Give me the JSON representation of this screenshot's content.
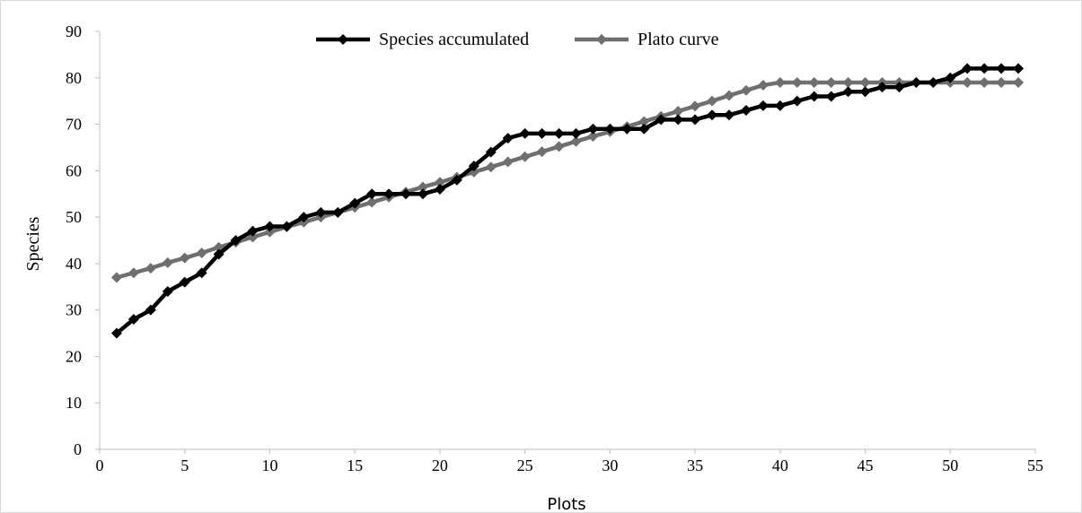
{
  "colors": {
    "series_1": "#000000",
    "series_2": "#6f6f6f",
    "axis": "#bfbfbf",
    "frame": "#d9d9d9"
  },
  "chart_data": {
    "type": "line",
    "title": "",
    "xlabel": "Plots",
    "ylabel": "Species",
    "xlim": [
      0,
      55
    ],
    "ylim": [
      0,
      90
    ],
    "x_ticks": [
      0,
      5,
      10,
      15,
      20,
      25,
      30,
      35,
      40,
      45,
      50,
      55
    ],
    "y_ticks": [
      0,
      10,
      20,
      30,
      40,
      50,
      60,
      70,
      80,
      90
    ],
    "grid": false,
    "legend_position": "top-center",
    "x": [
      1,
      2,
      3,
      4,
      5,
      6,
      7,
      8,
      9,
      10,
      11,
      12,
      13,
      14,
      15,
      16,
      17,
      18,
      19,
      20,
      21,
      22,
      23,
      24,
      25,
      26,
      27,
      28,
      29,
      30,
      31,
      32,
      33,
      34,
      35,
      36,
      37,
      38,
      39,
      40,
      41,
      42,
      43,
      44,
      45,
      46,
      47,
      48,
      49,
      50,
      51,
      52,
      53,
      54
    ],
    "series": [
      {
        "name": "Species accumulated",
        "marker": "diamond",
        "values": [
          25,
          28,
          30,
          34,
          36,
          38,
          42,
          45,
          47,
          48,
          48,
          50,
          51,
          51,
          53,
          55,
          55,
          55,
          55,
          56,
          58,
          61,
          64,
          67,
          68,
          68,
          68,
          68,
          69,
          69,
          69,
          69,
          71,
          71,
          71,
          72,
          72,
          73,
          74,
          74,
          75,
          76,
          76,
          77,
          77,
          78,
          78,
          79,
          79,
          80,
          82,
          82,
          82,
          82
        ]
      },
      {
        "name": "Plato curve",
        "marker": "diamond",
        "values": [
          37,
          38,
          39,
          40.2,
          41.2,
          42.3,
          43.5,
          44.6,
          45.7,
          46.8,
          47.9,
          48.9,
          50,
          51,
          52.1,
          53.2,
          54.3,
          55.4,
          56.5,
          57.5,
          58.6,
          59.7,
          60.8,
          61.9,
          63,
          64.1,
          65.2,
          66.3,
          67.4,
          68.4,
          69.5,
          70.6,
          71.7,
          72.8,
          73.9,
          75,
          76.2,
          77.3,
          78.4,
          79,
          79,
          79,
          79,
          79,
          79,
          79,
          79,
          79,
          79,
          79,
          79,
          79,
          79,
          79
        ]
      }
    ]
  }
}
